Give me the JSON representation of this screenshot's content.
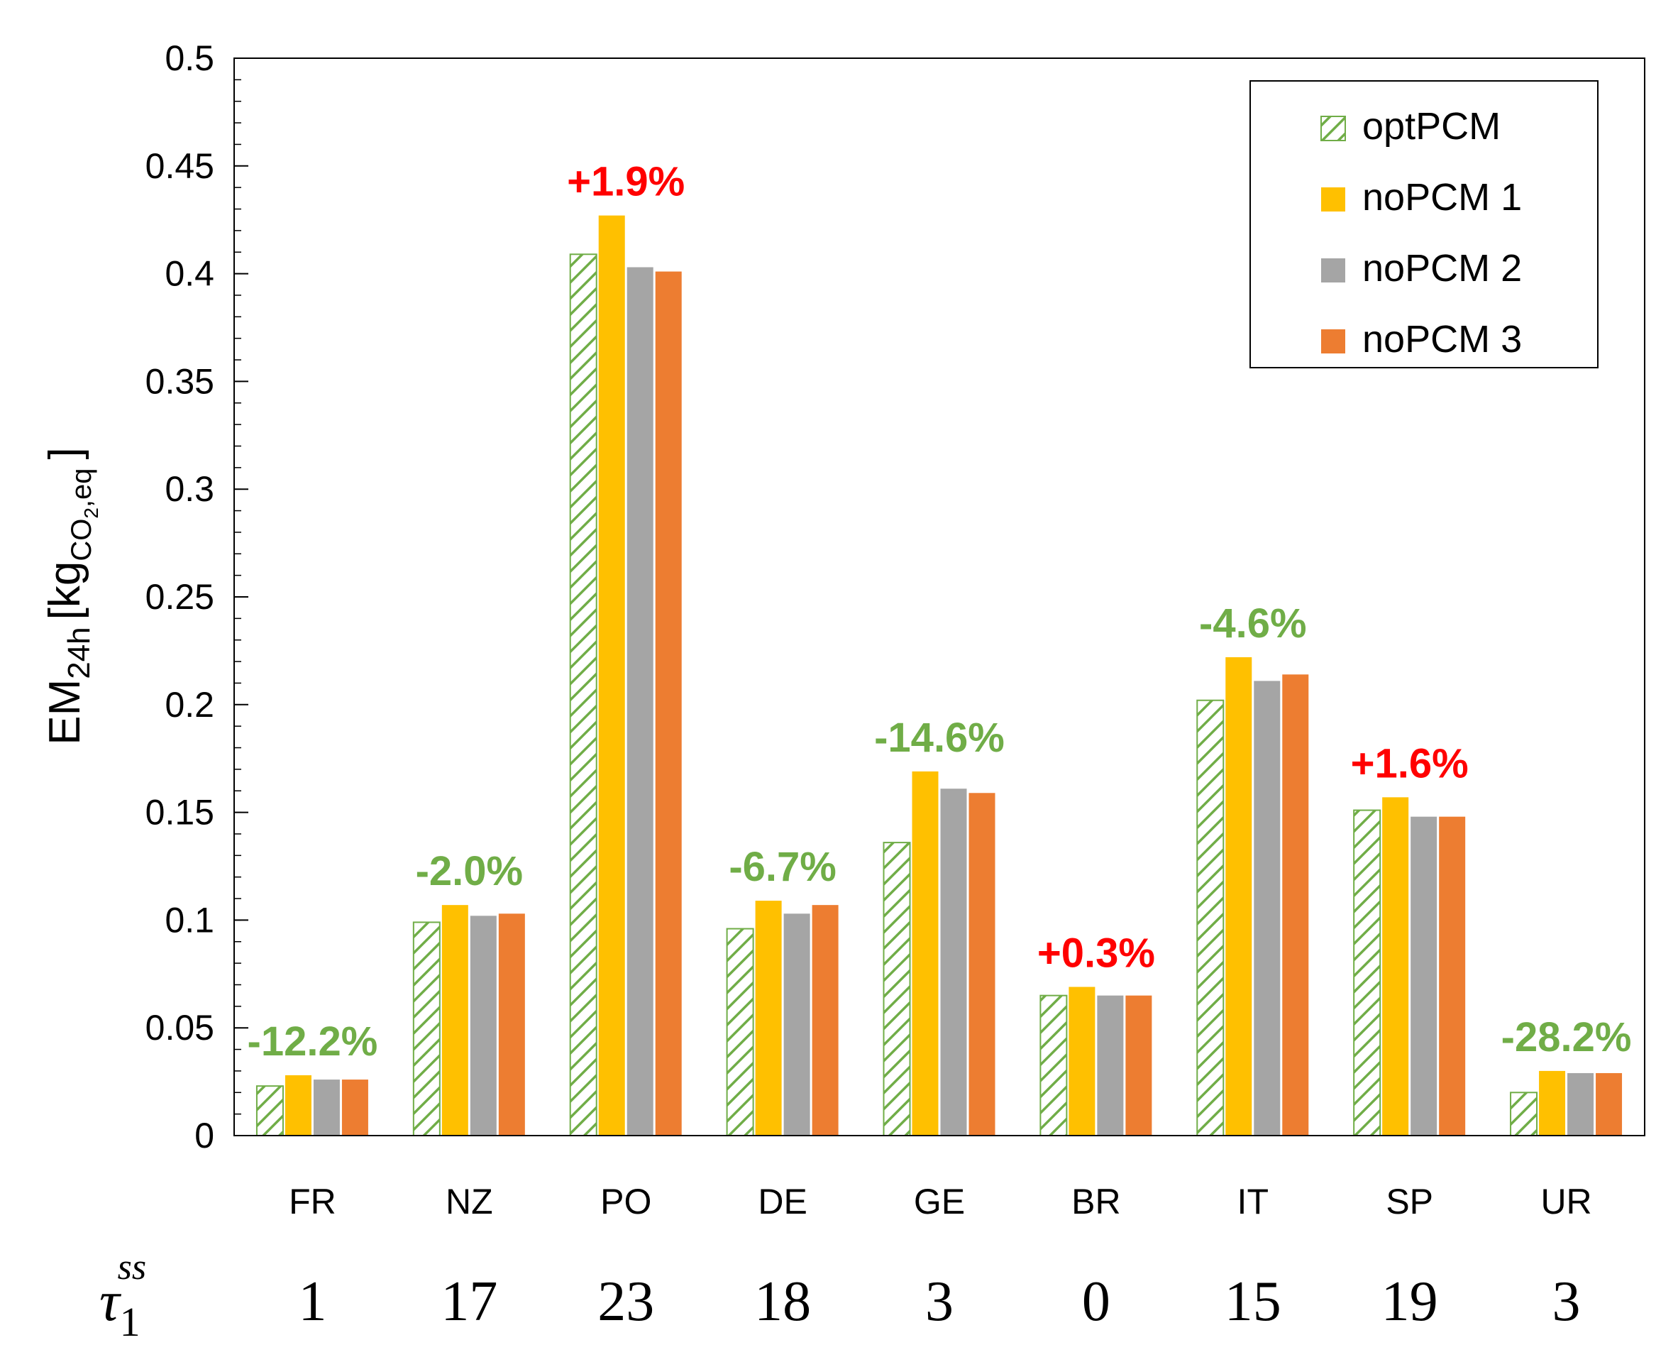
{
  "chart_data": {
    "type": "bar",
    "ylabel": {
      "main": "EM",
      "main_sub": "24h",
      "unit_open": "[kg",
      "unit_sub": "CO",
      "unit_sub2": "2",
      "unit_sub_rest": ",eq",
      "unit_close": "]"
    },
    "ylim": [
      0,
      0.5
    ],
    "ytick_labels": [
      "0",
      "0.05",
      "0.1",
      "0.15",
      "0.2",
      "0.25",
      "0.3",
      "0.35",
      "0.4",
      "0.45",
      "0.5"
    ],
    "yticks": [
      0,
      0.05,
      0.1,
      0.15,
      0.2,
      0.25,
      0.3,
      0.35,
      0.4,
      0.45,
      0.5
    ],
    "minor_tick_step": 0.01,
    "categories": [
      "FR",
      "NZ",
      "PO",
      "DE",
      "GE",
      "BR",
      "IT",
      "SP",
      "UR"
    ],
    "series": [
      {
        "name": "optPCM",
        "pattern": "hatch",
        "color": "#70ad47",
        "values": [
          0.023,
          0.099,
          0.409,
          0.096,
          0.136,
          0.065,
          0.202,
          0.151,
          0.02
        ]
      },
      {
        "name": "noPCM 1",
        "pattern": "solid",
        "color": "#ffc000",
        "values": [
          0.028,
          0.107,
          0.427,
          0.109,
          0.169,
          0.069,
          0.222,
          0.157,
          0.03
        ]
      },
      {
        "name": "noPCM 2",
        "pattern": "solid",
        "color": "#a5a5a5",
        "values": [
          0.026,
          0.102,
          0.403,
          0.103,
          0.161,
          0.065,
          0.211,
          0.148,
          0.029
        ]
      },
      {
        "name": "noPCM 3",
        "pattern": "solid",
        "color": "#ed7d31",
        "values": [
          0.026,
          0.103,
          0.401,
          0.107,
          0.159,
          0.065,
          0.214,
          0.148,
          0.029
        ]
      }
    ],
    "annotations": [
      {
        "text": "-12.2%",
        "color": "#70ad47"
      },
      {
        "text": "-2.0%",
        "color": "#70ad47"
      },
      {
        "text": "+1.9%",
        "color": "#ff0000"
      },
      {
        "text": "-6.7%",
        "color": "#70ad47"
      },
      {
        "text": "-14.6%",
        "color": "#70ad47"
      },
      {
        "text": "+0.3%",
        "color": "#ff0000"
      },
      {
        "text": "-4.6%",
        "color": "#70ad47"
      },
      {
        "text": "+1.6%",
        "color": "#ff0000"
      },
      {
        "text": "-28.2%",
        "color": "#70ad47"
      }
    ],
    "tau_label": {
      "symbol": "τ",
      "sub": "1",
      "sup": "ss"
    },
    "tau_values": [
      "1",
      "17",
      "23",
      "18",
      "3",
      "0",
      "15",
      "19",
      "3"
    ],
    "legend": {
      "position": "top-right"
    }
  }
}
